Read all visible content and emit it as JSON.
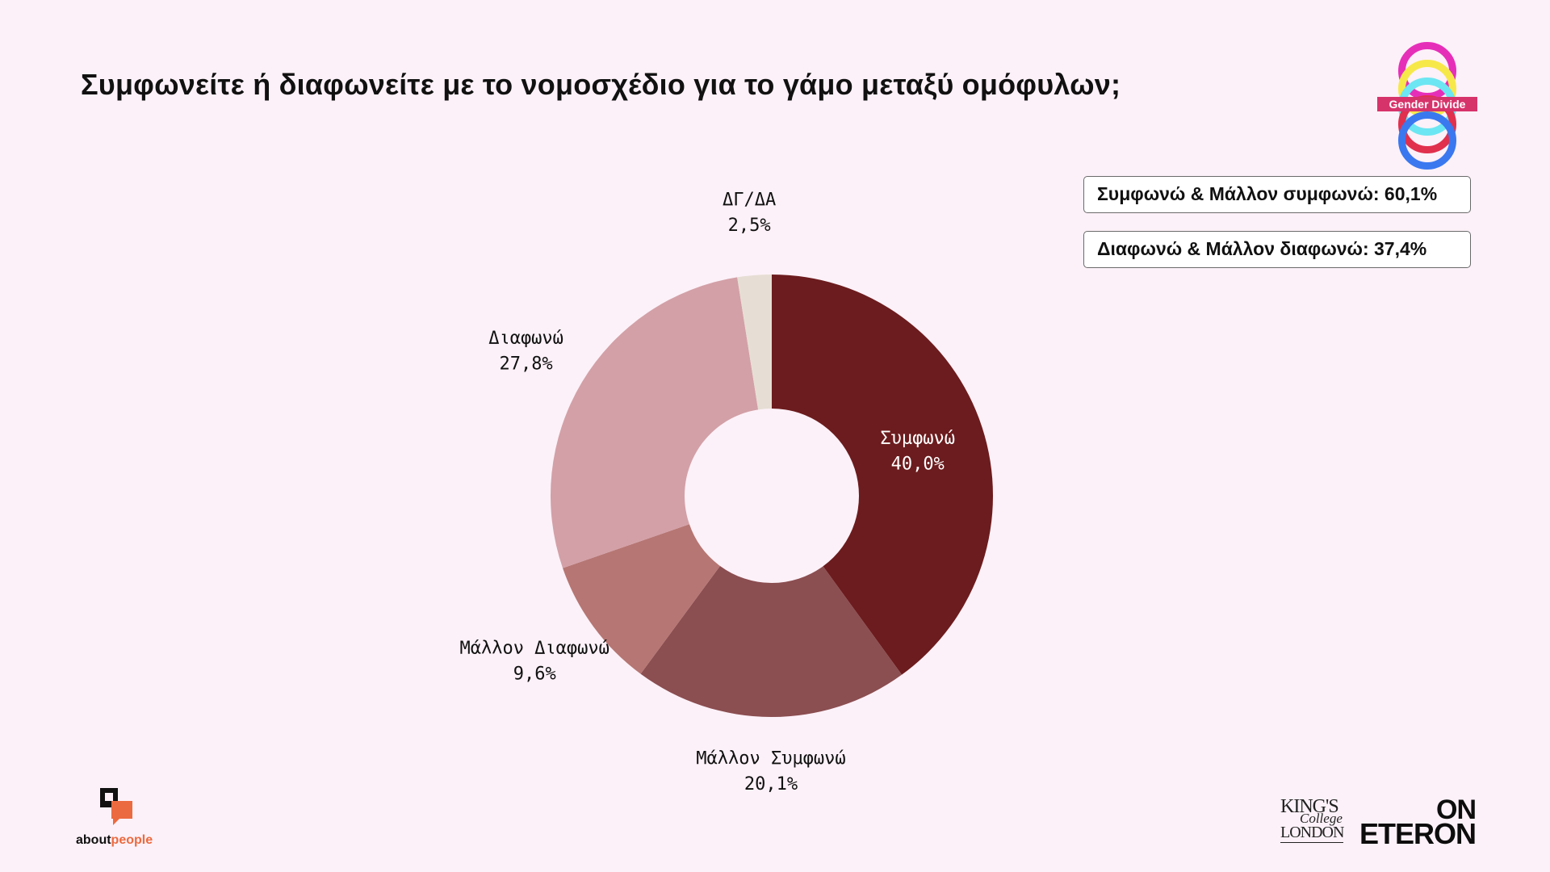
{
  "title": "Συμφωνείτε ή διαφωνείτε με το νομοσχέδιο για το γάμο μεταξύ ομόφυλων;",
  "summary": [
    "Συμφωνώ & Μάλλον συμφωνώ: 60,1%",
    "Διαφωνώ & Μάλλον διαφωνώ: 37,4%"
  ],
  "logos": {
    "gender_divide": "Gender Divide",
    "aboutpeople_part1": "about",
    "aboutpeople_part2": "people",
    "kings_line1": "KING'S",
    "kings_line2": "College",
    "kings_line3": "LONDON",
    "eteron_line1": "ON",
    "eteron_line2": "ETERON"
  },
  "chart_data": {
    "type": "pie",
    "donut": true,
    "start_angle_deg": 0,
    "direction": "clockwise",
    "slices": [
      {
        "label": "Συμφωνώ",
        "value": 40.0,
        "value_label": "40,0%",
        "color": "#6c1c1e",
        "label_color": "#ffffff",
        "label_position": "inside"
      },
      {
        "label": "Μάλλον Συμφωνώ",
        "value": 20.1,
        "value_label": "20,1%",
        "color": "#8b4e51",
        "label_color": "#111111",
        "label_position": "outside"
      },
      {
        "label": "Μάλλον Διαφωνώ",
        "value": 9.6,
        "value_label": "9,6%",
        "color": "#b67673",
        "label_color": "#111111",
        "label_position": "outside"
      },
      {
        "label": "Διαφωνώ",
        "value": 27.8,
        "value_label": "27,8%",
        "color": "#d3a0a7",
        "label_color": "#111111",
        "label_position": "outside"
      },
      {
        "label": "ΔΓ/ΔΑ",
        "value": 2.5,
        "value_label": "2,5%",
        "color": "#e6ded4",
        "label_color": "#111111",
        "label_position": "outside"
      }
    ]
  }
}
